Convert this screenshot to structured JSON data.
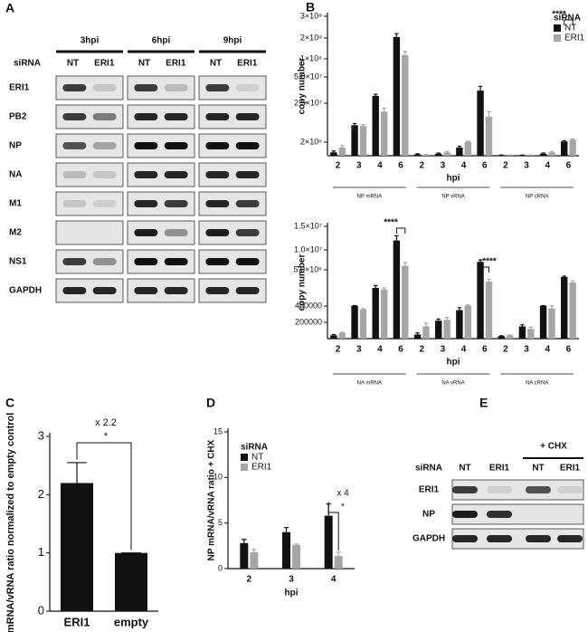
{
  "panel_labels": [
    "A",
    "B",
    "C",
    "D",
    "E"
  ],
  "blot_a": {
    "row_header": "siRNA",
    "timepoints": [
      "3hpi",
      "6hpi",
      "9hpi"
    ],
    "lanes": [
      "NT",
      "ERI1",
      "NT",
      "ERI1",
      "NT",
      "ERI1"
    ],
    "proteins": [
      "ERI1",
      "PB2",
      "NP",
      "NA",
      "M1",
      "M2",
      "NS1",
      "GAPDH"
    ]
  },
  "blot_e": {
    "row_header": "siRNA",
    "treatment": "+ CHX",
    "lanes": [
      "NT",
      "ERI1",
      "NT",
      "ERI1"
    ],
    "proteins": [
      "ERI1",
      "NP",
      "GAPDH"
    ]
  },
  "chart_data": [
    {
      "type": "grouped-bar",
      "ylabel": "copy number",
      "xlabel": "hpi",
      "legend_title": "siRNA",
      "groups": [
        "NP mRNA",
        "NP vRNA",
        "NP cRNA"
      ],
      "categories": [
        "2",
        "3",
        "4",
        "6",
        "2",
        "3",
        "4",
        "6",
        "2",
        "3",
        "4",
        "6"
      ],
      "series": [
        {
          "name": "NT",
          "color": "#111111",
          "values": [
            500000,
            12000000,
            32000000,
            205000000,
            200000,
            300000,
            1200000,
            37000000,
            50000,
            50000,
            300000,
            2400000
          ],
          "errors": [
            200000,
            1000000,
            1500000,
            15000000,
            100000,
            100000,
            200000,
            4000000,
            50000,
            50000,
            100000,
            500000
          ]
        },
        {
          "name": "ERI1",
          "color": "#a6a6a6",
          "values": [
            1200000,
            11500000,
            20000000,
            118000000,
            100000,
            500000,
            2200000,
            17000000,
            50000,
            50000,
            500000,
            3500000
          ],
          "errors": [
            300000,
            800000,
            2000000,
            18000000,
            100000,
            100000,
            400000,
            3000000,
            50000,
            50000,
            100000,
            400000
          ]
        }
      ],
      "ylim": [
        0,
        300000000
      ],
      "yticks": [
        {
          "value": 2000000,
          "label": "2×10⁶"
        },
        {
          "value": 25000000,
          "label": "2.5×10⁷"
        },
        {
          "value": 50000000,
          "label": "5.0×10⁷"
        },
        {
          "value": 100000000,
          "label": "1×10⁸"
        },
        {
          "value": 200000000,
          "label": "2×10⁸"
        },
        {
          "value": 300000000,
          "label": "3×10⁸"
        }
      ],
      "annotations": [
        "****"
      ]
    },
    {
      "type": "grouped-bar",
      "ylabel": "copy number",
      "xlabel": "hpi",
      "groups": [
        "NA mRNA",
        "NA vRNA",
        "NA cRNA"
      ],
      "categories": [
        "2",
        "3",
        "4",
        "6",
        "2",
        "3",
        "4",
        "6",
        "2",
        "3",
        "4",
        "6"
      ],
      "series": [
        {
          "color": "#111111",
          "values": [
            40000,
            430000,
            2700000,
            12000000,
            50000,
            220000,
            350000,
            7000000,
            30000,
            150000,
            430000,
            4100000
          ],
          "errors": [
            10000,
            30000,
            300000,
            1000000,
            20000,
            20000,
            30000,
            500000,
            5000,
            20000,
            30000,
            100000
          ]
        },
        {
          "color": "#a6a6a6",
          "values": [
            70000,
            360000,
            2500000,
            6000000,
            150000,
            230000,
            450000,
            3500000,
            40000,
            120000,
            370000,
            3400000
          ],
          "errors": [
            10000,
            10000,
            200000,
            800000,
            40000,
            30000,
            80000,
            300000,
            5000,
            20000,
            60000,
            200000
          ]
        }
      ],
      "ylim": [
        0,
        15000000
      ],
      "yticks": [
        200000,
        400000,
        {
          "value": 5000000,
          "label": "5.0×10⁶"
        },
        {
          "value": 10000000,
          "label": "1.0×10⁷"
        },
        {
          "value": 15000000,
          "label": "1.5×10⁷"
        }
      ],
      "annotations": [
        "****",
        "****"
      ]
    },
    {
      "type": "bar",
      "ylabel": "NP mRNA/vRNA ratio normalized to empty control",
      "categories": [
        "ERI1",
        "empty"
      ],
      "values": [
        2.2,
        1.0
      ],
      "errors": [
        0.35,
        0
      ],
      "color": "#111111",
      "ylim": [
        0,
        3
      ],
      "yticks": [
        0,
        1,
        2,
        3
      ],
      "annotations": [
        "x 2.2",
        "*"
      ]
    },
    {
      "type": "grouped-bar",
      "ylabel": "NP mRNA/vRNA ratio + CHX",
      "xlabel": "hpi",
      "legend_title": "siRNA",
      "categories": [
        "2",
        "3",
        "4"
      ],
      "series": [
        {
          "name": "NT",
          "color": "#111111",
          "values": [
            2.8,
            4.0,
            5.8
          ],
          "errors": [
            0.4,
            0.5,
            1.3
          ]
        },
        {
          "name": "ERI1",
          "color": "#a6a6a6",
          "values": [
            1.8,
            2.6,
            1.4
          ],
          "errors": [
            0.3,
            0.1,
            0.4
          ]
        }
      ],
      "ylim": [
        0,
        15
      ],
      "yticks": [
        0,
        5,
        10,
        15
      ],
      "annotations": [
        "x 4",
        "*"
      ]
    }
  ]
}
